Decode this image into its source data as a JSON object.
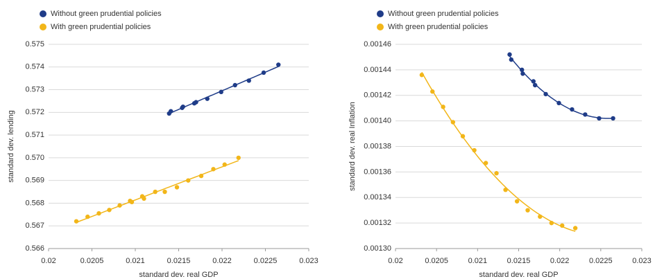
{
  "chart_data": [
    {
      "type": "scatter",
      "trendline": "linear",
      "xlabel": "standard dev. real GDP",
      "ylabel": "standard dev. lending",
      "xlim": [
        0.02,
        0.023
      ],
      "xticks": [
        0.02,
        0.0205,
        0.021,
        0.0215,
        0.022,
        0.0225,
        0.023
      ],
      "ylim": [
        0.566,
        0.575
      ],
      "yticks": [
        0.566,
        0.567,
        0.568,
        0.569,
        {
          "value": 0.57,
          "label": "0.570"
        },
        0.571,
        0.572,
        0.573,
        0.574,
        0.575
      ],
      "grid": true,
      "series": [
        {
          "name": "Without green prudential policies",
          "color": "#1f3c88",
          "x": [
            0.02139,
            0.02141,
            0.02154,
            0.02155,
            0.02168,
            0.0217,
            0.02183,
            0.02199,
            0.02215,
            0.02231,
            0.02248,
            0.02265
          ],
          "values": [
            0.57195,
            0.57205,
            0.5722,
            0.57225,
            0.5724,
            0.57245,
            0.5726,
            0.5729,
            0.5732,
            0.5734,
            0.57375,
            0.5741
          ]
        },
        {
          "name": "With green prudential policies",
          "color": "#f2b619",
          "x": [
            0.02032,
            0.02045,
            0.02058,
            0.0207,
            0.02082,
            0.02094,
            0.02096,
            0.02108,
            0.0211,
            0.02123,
            0.02134,
            0.02148,
            0.02161,
            0.02176,
            0.0219,
            0.02203,
            0.02219
          ],
          "values": [
            0.5672,
            0.5674,
            0.56755,
            0.5677,
            0.5679,
            0.5681,
            0.56805,
            0.5683,
            0.5682,
            0.5685,
            0.5685,
            0.5687,
            0.569,
            0.5692,
            0.5695,
            0.5697,
            0.57
          ]
        }
      ]
    },
    {
      "type": "scatter",
      "trendline": "polynomial",
      "xlabel": "standard dev. real GDP",
      "ylabel": "standard dev. real Inflation",
      "xlim": [
        0.02,
        0.023
      ],
      "xticks": [
        0.02,
        0.0205,
        0.021,
        0.0215,
        0.022,
        0.0225,
        0.023
      ],
      "ylim": [
        0.0013,
        0.00146
      ],
      "yticks": [
        {
          "value": 0.0013,
          "label": "0.00130"
        },
        0.00132,
        0.00134,
        0.00136,
        0.00138,
        {
          "value": 0.0014,
          "label": "0.00140"
        },
        0.00142,
        0.00144,
        0.00146
      ],
      "grid": true,
      "series": [
        {
          "name": "Without green prudential policies",
          "color": "#1f3c88",
          "x": [
            0.02139,
            0.02141,
            0.02154,
            0.02155,
            0.02168,
            0.0217,
            0.02183,
            0.02199,
            0.02215,
            0.02231,
            0.02248,
            0.02265
          ],
          "values": [
            0.001452,
            0.001448,
            0.00144,
            0.001437,
            0.001431,
            0.001428,
            0.001421,
            0.001414,
            0.001409,
            0.001405,
            0.001402,
            0.001402
          ]
        },
        {
          "name": "With green prudential policies",
          "color": "#f2b619",
          "x": [
            0.02032,
            0.02045,
            0.02058,
            0.0207,
            0.02082,
            0.02096,
            0.0211,
            0.02123,
            0.02134,
            0.02148,
            0.02161,
            0.02176,
            0.0219,
            0.02203,
            0.02219
          ],
          "values": [
            0.001436,
            0.001423,
            0.001411,
            0.001399,
            0.001388,
            0.001377,
            0.001367,
            0.001359,
            0.001346,
            0.001337,
            0.00133,
            0.001325,
            0.00132,
            0.001318,
            0.001316
          ]
        }
      ]
    }
  ]
}
